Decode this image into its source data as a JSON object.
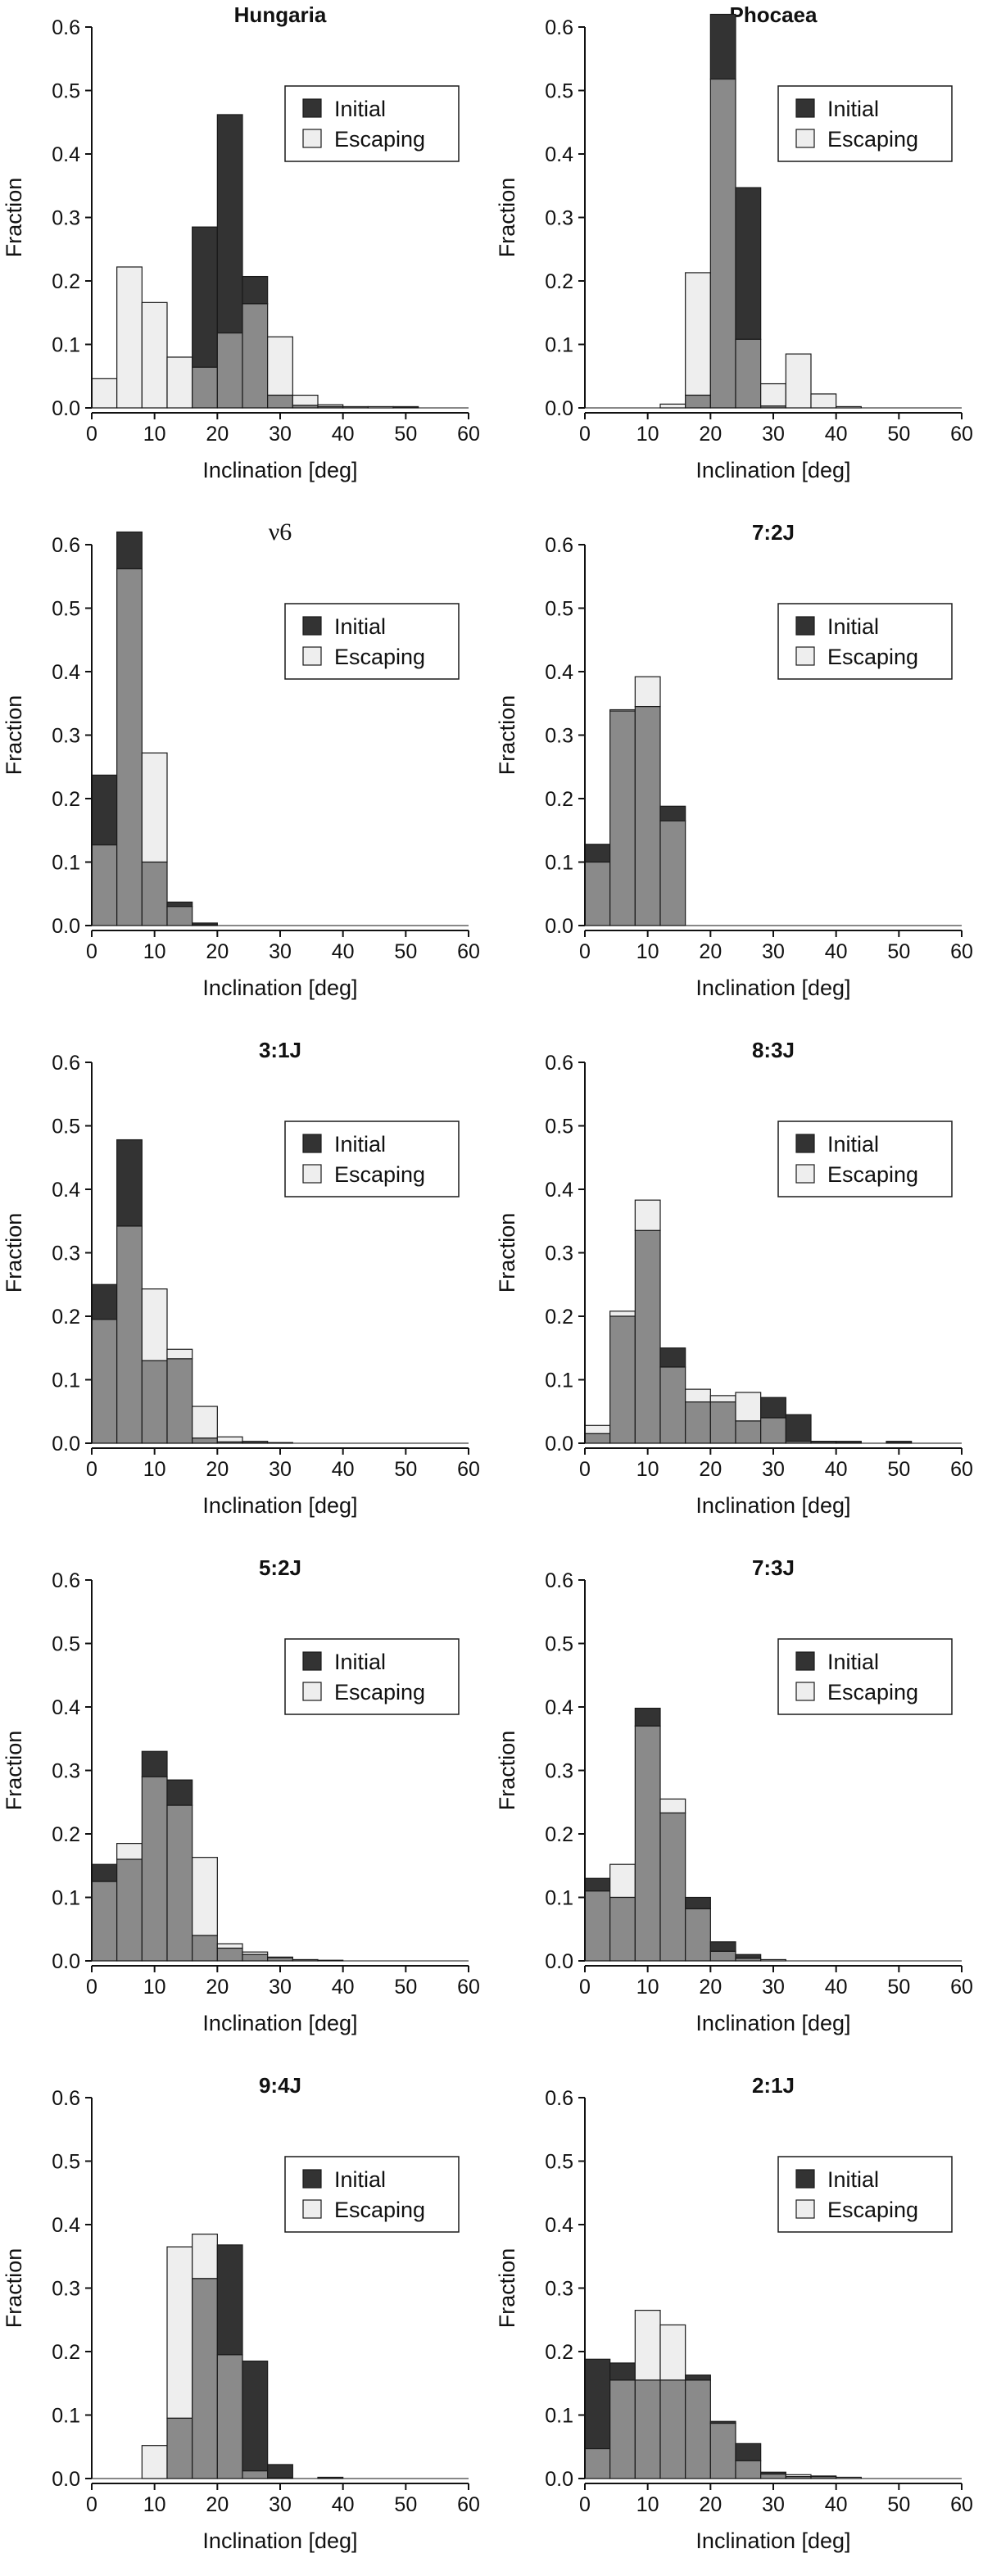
{
  "figure": {
    "colors": {
      "initial": "#333333",
      "escaping": "#eeeeee",
      "overlap": "#8a8a8a",
      "edge": "#1a1a1a",
      "axis": "#111111"
    },
    "legend": {
      "initial": "Initial",
      "escaping": "Escaping"
    }
  },
  "chart_data": [
    {
      "type": "bar",
      "title": "Hungaria",
      "xlabel": "Inclination [deg]",
      "ylabel": "Fraction",
      "xlim": [
        0,
        60
      ],
      "ylim": [
        0,
        0.6
      ],
      "xticks": [
        0,
        10,
        20,
        30,
        40,
        50,
        60
      ],
      "yticks": [
        0.0,
        0.1,
        0.2,
        0.3,
        0.4,
        0.5,
        0.6
      ],
      "bin_edges": [
        0,
        4,
        8,
        12,
        16,
        20,
        24,
        28,
        32,
        36,
        40,
        44,
        48,
        52,
        56
      ],
      "series": [
        {
          "name": "Initial",
          "values": [
            0.0,
            0.0,
            0.0,
            0.0,
            0.285,
            0.462,
            0.207,
            0.02,
            0.004,
            0.002,
            0.002,
            0.0,
            0.002,
            0.0
          ]
        },
        {
          "name": "Escaping",
          "values": [
            0.046,
            0.222,
            0.166,
            0.08,
            0.064,
            0.118,
            0.164,
            0.112,
            0.02,
            0.005,
            0.002,
            0.002,
            0.0,
            0.0
          ]
        }
      ],
      "legend_position": "top-right"
    },
    {
      "type": "bar",
      "title": "Phocaea",
      "xlabel": "Inclination [deg]",
      "ylabel": "Fraction",
      "xlim": [
        0,
        60
      ],
      "ylim": [
        0,
        0.6
      ],
      "xticks": [
        0,
        10,
        20,
        30,
        40,
        50,
        60
      ],
      "yticks": [
        0.0,
        0.1,
        0.2,
        0.3,
        0.4,
        0.5,
        0.6
      ],
      "bin_edges": [
        0,
        4,
        8,
        12,
        16,
        20,
        24,
        28,
        32,
        36,
        40,
        44,
        48,
        52,
        56
      ],
      "series": [
        {
          "name": "Initial",
          "values": [
            0.0,
            0.0,
            0.0,
            0.0,
            0.02,
            0.62,
            0.347,
            0.003,
            0.0,
            0.0,
            0.0,
            0.0,
            0.0,
            0.0
          ]
        },
        {
          "name": "Escaping",
          "values": [
            0.0,
            0.0,
            0.0,
            0.006,
            0.213,
            0.518,
            0.108,
            0.038,
            0.085,
            0.022,
            0.002,
            0.0,
            0.0,
            0.0
          ]
        }
      ],
      "legend_position": "top-right"
    },
    {
      "type": "bar",
      "title": "ν6",
      "title_style": "serif",
      "xlabel": "Inclination [deg]",
      "ylabel": "Fraction",
      "xlim": [
        0,
        60
      ],
      "ylim": [
        0,
        0.6
      ],
      "xticks": [
        0,
        10,
        20,
        30,
        40,
        50,
        60
      ],
      "yticks": [
        0.0,
        0.1,
        0.2,
        0.3,
        0.4,
        0.5,
        0.6
      ],
      "bin_edges": [
        0,
        4,
        8,
        12,
        16,
        20,
        24,
        28,
        32,
        36,
        40,
        44,
        48,
        52,
        56
      ],
      "series": [
        {
          "name": "Initial",
          "values": [
            0.237,
            0.62,
            0.1,
            0.037,
            0.004,
            0.0,
            0.0,
            0.0,
            0.0,
            0.0,
            0.0,
            0.0,
            0.0,
            0.0
          ]
        },
        {
          "name": "Escaping",
          "values": [
            0.127,
            0.562,
            0.272,
            0.03,
            0.001,
            0.0,
            0.0,
            0.0,
            0.0,
            0.0,
            0.0,
            0.0,
            0.0,
            0.0
          ]
        }
      ],
      "legend_position": "top-right"
    },
    {
      "type": "bar",
      "title": "7:2J",
      "xlabel": "Inclination [deg]",
      "ylabel": "Fraction",
      "xlim": [
        0,
        60
      ],
      "ylim": [
        0,
        0.6
      ],
      "xticks": [
        0,
        10,
        20,
        30,
        40,
        50,
        60
      ],
      "yticks": [
        0.0,
        0.1,
        0.2,
        0.3,
        0.4,
        0.5,
        0.6
      ],
      "bin_edges": [
        0,
        4,
        8,
        12,
        16,
        20,
        24,
        28,
        32,
        36,
        40,
        44,
        48,
        52,
        56
      ],
      "series": [
        {
          "name": "Initial",
          "values": [
            0.128,
            0.338,
            0.345,
            0.188,
            0.0,
            0.0,
            0.0,
            0.0,
            0.0,
            0.0,
            0.0,
            0.0,
            0.0,
            0.0
          ]
        },
        {
          "name": "Escaping",
          "values": [
            0.1,
            0.34,
            0.392,
            0.165,
            0.0,
            0.0,
            0.0,
            0.0,
            0.0,
            0.0,
            0.0,
            0.0,
            0.0,
            0.0
          ]
        }
      ],
      "legend_position": "top-right"
    },
    {
      "type": "bar",
      "title": "3:1J",
      "xlabel": "Inclination [deg]",
      "ylabel": "Fraction",
      "xlim": [
        0,
        60
      ],
      "ylim": [
        0,
        0.6
      ],
      "xticks": [
        0,
        10,
        20,
        30,
        40,
        50,
        60
      ],
      "yticks": [
        0.0,
        0.1,
        0.2,
        0.3,
        0.4,
        0.5,
        0.6
      ],
      "bin_edges": [
        0,
        4,
        8,
        12,
        16,
        20,
        24,
        28,
        32,
        36,
        40,
        44,
        48,
        52,
        56
      ],
      "series": [
        {
          "name": "Initial",
          "values": [
            0.25,
            0.478,
            0.13,
            0.133,
            0.008,
            0.002,
            0.001,
            0.0,
            0.0,
            0.0,
            0.0,
            0.0,
            0.0,
            0.0
          ]
        },
        {
          "name": "Escaping",
          "values": [
            0.195,
            0.342,
            0.243,
            0.148,
            0.058,
            0.01,
            0.003,
            0.001,
            0.0,
            0.0,
            0.0,
            0.0,
            0.0,
            0.0
          ]
        }
      ],
      "legend_position": "top-right"
    },
    {
      "type": "bar",
      "title": "8:3J",
      "xlabel": "Inclination [deg]",
      "ylabel": "Fraction",
      "xlim": [
        0,
        60
      ],
      "ylim": [
        0,
        0.6
      ],
      "xticks": [
        0,
        10,
        20,
        30,
        40,
        50,
        60
      ],
      "yticks": [
        0.0,
        0.1,
        0.2,
        0.3,
        0.4,
        0.5,
        0.6
      ],
      "bin_edges": [
        0,
        4,
        8,
        12,
        16,
        20,
        24,
        28,
        32,
        36,
        40,
        44,
        48,
        52,
        56
      ],
      "series": [
        {
          "name": "Initial",
          "values": [
            0.015,
            0.2,
            0.335,
            0.15,
            0.065,
            0.065,
            0.035,
            0.072,
            0.045,
            0.003,
            0.003,
            0.0,
            0.003,
            0.0
          ]
        },
        {
          "name": "Escaping",
          "values": [
            0.028,
            0.208,
            0.383,
            0.12,
            0.085,
            0.075,
            0.08,
            0.04,
            0.003,
            0.002,
            0.0,
            0.0,
            0.0,
            0.0
          ]
        }
      ],
      "legend_position": "top-right"
    },
    {
      "type": "bar",
      "title": "5:2J",
      "xlabel": "Inclination [deg]",
      "ylabel": "Fraction",
      "xlim": [
        0,
        60
      ],
      "ylim": [
        0,
        0.6
      ],
      "xticks": [
        0,
        10,
        20,
        30,
        40,
        50,
        60
      ],
      "yticks": [
        0.0,
        0.1,
        0.2,
        0.3,
        0.4,
        0.5,
        0.6
      ],
      "bin_edges": [
        0,
        4,
        8,
        12,
        16,
        20,
        24,
        28,
        32,
        36,
        40,
        44,
        48,
        52,
        56
      ],
      "series": [
        {
          "name": "Initial",
          "values": [
            0.152,
            0.16,
            0.33,
            0.285,
            0.04,
            0.02,
            0.01,
            0.005,
            0.002,
            0.001,
            0.0,
            0.0,
            0.0,
            0.0
          ]
        },
        {
          "name": "Escaping",
          "values": [
            0.125,
            0.185,
            0.29,
            0.245,
            0.163,
            0.027,
            0.014,
            0.006,
            0.002,
            0.001,
            0.0,
            0.0,
            0.0,
            0.0
          ]
        }
      ],
      "legend_position": "top-right"
    },
    {
      "type": "bar",
      "title": "7:3J",
      "xlabel": "Inclination [deg]",
      "ylabel": "Fraction",
      "xlim": [
        0,
        60
      ],
      "ylim": [
        0,
        0.6
      ],
      "xticks": [
        0,
        10,
        20,
        30,
        40,
        50,
        60
      ],
      "yticks": [
        0.0,
        0.1,
        0.2,
        0.3,
        0.4,
        0.5,
        0.6
      ],
      "bin_edges": [
        0,
        4,
        8,
        12,
        16,
        20,
        24,
        28,
        32,
        36,
        40,
        44,
        48,
        52,
        56
      ],
      "series": [
        {
          "name": "Initial",
          "values": [
            0.13,
            0.1,
            0.398,
            0.233,
            0.1,
            0.03,
            0.01,
            0.0,
            0.0,
            0.0,
            0.0,
            0.0,
            0.0,
            0.0
          ]
        },
        {
          "name": "Escaping",
          "values": [
            0.11,
            0.152,
            0.37,
            0.255,
            0.082,
            0.015,
            0.004,
            0.002,
            0.0,
            0.0,
            0.0,
            0.0,
            0.0,
            0.0
          ]
        }
      ],
      "legend_position": "top-right"
    },
    {
      "type": "bar",
      "title": "9:4J",
      "xlabel": "Inclination [deg]",
      "ylabel": "Fraction",
      "xlim": [
        0,
        60
      ],
      "ylim": [
        0,
        0.6
      ],
      "xticks": [
        0,
        10,
        20,
        30,
        40,
        50,
        60
      ],
      "yticks": [
        0.0,
        0.1,
        0.2,
        0.3,
        0.4,
        0.5,
        0.6
      ],
      "bin_edges": [
        0,
        4,
        8,
        12,
        16,
        20,
        24,
        28,
        32,
        36,
        40,
        44,
        48,
        52,
        56
      ],
      "series": [
        {
          "name": "Initial",
          "values": [
            0.0,
            0.0,
            0.0,
            0.095,
            0.315,
            0.368,
            0.185,
            0.022,
            0.0,
            0.002,
            0.0,
            0.0,
            0.0,
            0.0
          ]
        },
        {
          "name": "Escaping",
          "values": [
            0.0,
            0.0,
            0.052,
            0.365,
            0.385,
            0.195,
            0.012,
            0.001,
            0.0,
            0.0,
            0.0,
            0.0,
            0.0,
            0.0
          ]
        }
      ],
      "legend_position": "top-right"
    },
    {
      "type": "bar",
      "title": "2:1J",
      "xlabel": "Inclination [deg]",
      "ylabel": "Fraction",
      "xlim": [
        0,
        60
      ],
      "ylim": [
        0,
        0.6
      ],
      "xticks": [
        0,
        10,
        20,
        30,
        40,
        50,
        60
      ],
      "yticks": [
        0.0,
        0.1,
        0.2,
        0.3,
        0.4,
        0.5,
        0.6
      ],
      "bin_edges": [
        0,
        4,
        8,
        12,
        16,
        20,
        24,
        28,
        32,
        36,
        40,
        44,
        48,
        52,
        56
      ],
      "series": [
        {
          "name": "Initial",
          "values": [
            0.188,
            0.182,
            0.155,
            0.155,
            0.163,
            0.09,
            0.055,
            0.01,
            0.003,
            0.003,
            0.0,
            0.0,
            0.0,
            0.0
          ]
        },
        {
          "name": "Escaping",
          "values": [
            0.047,
            0.155,
            0.265,
            0.242,
            0.155,
            0.087,
            0.028,
            0.007,
            0.006,
            0.004,
            0.002,
            0.0,
            0.0,
            0.0
          ]
        }
      ],
      "legend_position": "top-right"
    }
  ]
}
